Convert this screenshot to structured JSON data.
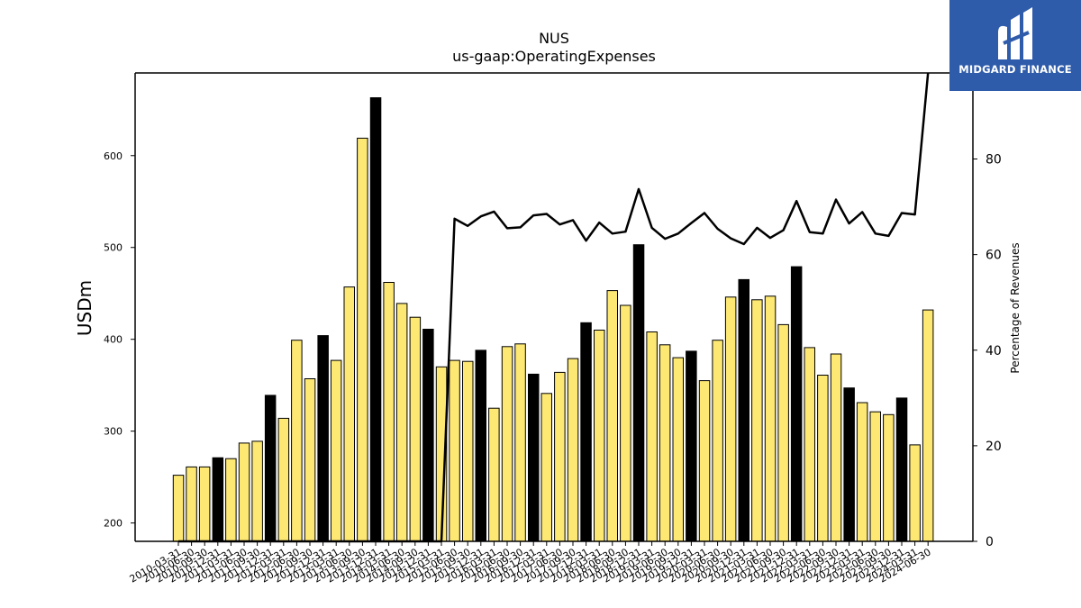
{
  "chart_data": {
    "type": "bar",
    "title": "NUS",
    "subtitle": "us-gaap:OperatingExpenses",
    "ylabel": "USDm",
    "y2label": "Percentage of Revenues",
    "ylim": [
      180,
      690
    ],
    "y2lim": [
      0,
      98
    ],
    "yticks": [
      200,
      300,
      400,
      500,
      600
    ],
    "y2ticks": [
      0,
      20,
      40,
      60,
      80
    ],
    "categories": [
      "2010-03-31",
      "2010-06-30",
      "2010-09-30",
      "2010-12-31",
      "2011-03-31",
      "2011-06-30",
      "2011-09-30",
      "2011-12-31",
      "2012-03-31",
      "2012-06-30",
      "2012-09-30",
      "2012-12-31",
      "2013-03-31",
      "2013-06-30",
      "2013-09-30",
      "2013-12-31",
      "2014-03-31",
      "2014-06-30",
      "2014-09-30",
      "2014-12-31",
      "2015-03-31",
      "2015-06-30",
      "2015-09-30",
      "2015-12-31",
      "2016-03-31",
      "2016-06-30",
      "2016-09-30",
      "2016-12-31",
      "2017-03-31",
      "2017-06-30",
      "2017-09-30",
      "2017-12-31",
      "2018-03-31",
      "2018-06-30",
      "2018-09-30",
      "2018-12-31",
      "2019-03-31",
      "2019-06-30",
      "2019-09-30",
      "2019-12-31",
      "2020-03-31",
      "2020-06-30",
      "2020-09-30",
      "2020-12-31",
      "2021-03-31",
      "2021-06-30",
      "2021-09-30",
      "2021-12-31",
      "2022-03-31",
      "2022-06-30",
      "2022-09-30",
      "2022-12-31",
      "2023-03-31",
      "2023-06-30",
      "2023-09-30",
      "2023-12-31",
      "2024-03-31",
      "2024-06-30"
    ],
    "series": [
      {
        "type": "bar",
        "values": [
          252,
          261,
          261,
          271,
          270,
          287,
          289,
          339,
          314,
          399,
          357,
          404,
          377,
          457,
          619,
          663,
          462,
          439,
          424,
          411,
          370,
          377,
          376,
          388,
          325,
          392,
          395,
          362,
          341,
          364,
          379,
          418,
          410,
          453,
          437,
          503,
          408,
          394,
          380,
          387,
          355,
          399,
          446,
          465,
          443,
          447,
          416,
          479,
          391,
          361,
          384,
          347,
          331,
          321,
          318,
          336,
          285,
          432
        ],
        "colors": [
          "#fde874",
          "#fde874",
          "#fde874",
          "#000000",
          "#fde874",
          "#fde874",
          "#fde874",
          "#000000",
          "#fde874",
          "#fde874",
          "#fde874",
          "#000000",
          "#fde874",
          "#fde874",
          "#fde874",
          "#000000",
          "#fde874",
          "#fde874",
          "#fde874",
          "#000000",
          "#fde874",
          "#fde874",
          "#fde874",
          "#000000",
          "#fde874",
          "#fde874",
          "#fde874",
          "#000000",
          "#fde874",
          "#fde874",
          "#fde874",
          "#000000",
          "#fde874",
          "#fde874",
          "#fde874",
          "#000000",
          "#fde874",
          "#fde874",
          "#fde874",
          "#000000",
          "#fde874",
          "#fde874",
          "#fde874",
          "#000000",
          "#fde874",
          "#fde874",
          "#fde874",
          "#000000",
          "#fde874",
          "#fde874",
          "#fde874",
          "#000000",
          "#fde874",
          "#fde874",
          "#fde874",
          "#000000",
          "#fde874",
          "#fde874"
        ]
      },
      {
        "type": "line",
        "axis": "right",
        "color": "#000000",
        "values": [
          0,
          0,
          0,
          0,
          0,
          0,
          0,
          0,
          0,
          0,
          0,
          0,
          0,
          0,
          0,
          0,
          0,
          0,
          0,
          0,
          0,
          67.5,
          66,
          68,
          69,
          65.5,
          65.7,
          68.2,
          68.5,
          66.3,
          67.2,
          62.9,
          66.7,
          64.4,
          64.8,
          73.7,
          65.6,
          63.3,
          64.4,
          66.6,
          68.7,
          65.4,
          63.4,
          62.2,
          65.6,
          63.5,
          65.1,
          71.2,
          64.7,
          64.4,
          71.5,
          66.5,
          68.9,
          64.4,
          63.9,
          68.7,
          68.4,
          98
        ]
      }
    ],
    "colors": {
      "bar_default": "#fde874",
      "bar_highlight": "#000000",
      "line": "#000000"
    }
  },
  "logo": {
    "text": "MIDGARD FINANCE",
    "background": "#2f5caa"
  }
}
